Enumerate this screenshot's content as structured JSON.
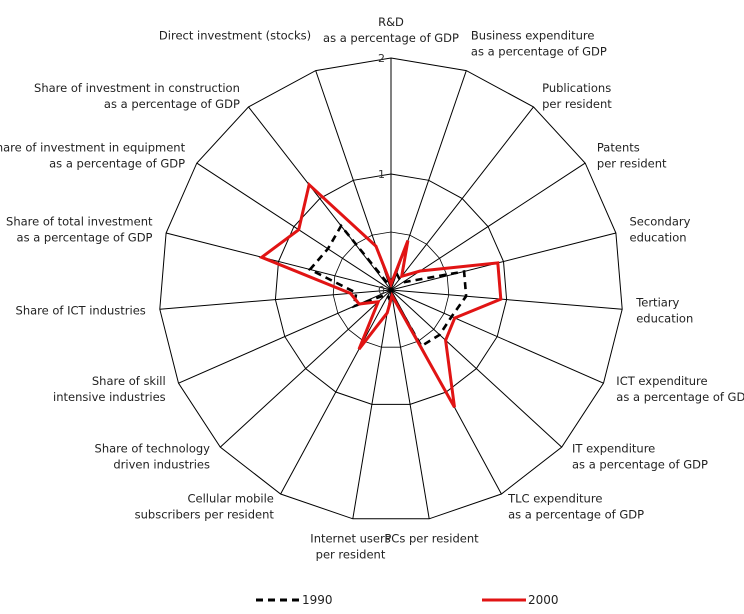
{
  "chart_data": {
    "type": "radar",
    "axes": [
      {
        "line1": "R&D",
        "line2": "as a percentage of GDP"
      },
      {
        "line1": "Business expenditure",
        "line2": "as a percentage of GDP"
      },
      {
        "line1": "Publications",
        "line2": "per resident"
      },
      {
        "line1": "Patents",
        "line2": "per resident"
      },
      {
        "line1": "Secondary",
        "line2": "education"
      },
      {
        "line1": "Tertiary",
        "line2": "education"
      },
      {
        "line1": "ICT expenditure",
        "line2": "as a percentage of GDP"
      },
      {
        "line1": "IT expenditure",
        "line2": "as a percentage of GDP"
      },
      {
        "line1": "TLC expenditure",
        "line2": "as a percentage of GDP"
      },
      {
        "line1": "PCs per resident",
        "line2": ""
      },
      {
        "line1": "Internet users",
        "line2": "per resident"
      },
      {
        "line1": "Cellular mobile",
        "line2": "subscribers per resident"
      },
      {
        "line1": "Share of technology",
        "line2": "driven industries"
      },
      {
        "line1": "Share of skill",
        "line2": "intensive industries"
      },
      {
        "line1": "Share of ICT industries",
        "line2": ""
      },
      {
        "line1": "Share of total investment",
        "line2": "as a percentage of GDP"
      },
      {
        "line1": "Share of investment in equipment",
        "line2": "as a percentage of GDP"
      },
      {
        "line1": "Share of investment in construction",
        "line2": "as a percentage of GDP"
      },
      {
        "line1": "Direct investment (stocks)",
        "line2": ""
      }
    ],
    "rmax": 2,
    "ticks": [
      0,
      1,
      2
    ],
    "series": [
      {
        "name": "1990",
        "color": "#000000",
        "style": "dashed",
        "values": [
          0.05,
          0.15,
          0.12,
          0.12,
          0.65,
          0.65,
          0.57,
          0.57,
          0.55,
          0.04,
          0.08,
          0.06,
          0.06,
          0.35,
          0.3,
          0.72,
          0.65,
          0.7,
          0.04
        ]
      },
      {
        "name": "2000",
        "color": "#e11414",
        "style": "solid",
        "values": [
          0.05,
          0.45,
          0.15,
          0.3,
          0.95,
          0.95,
          0.6,
          0.64,
          1.15,
          0.05,
          0.2,
          0.58,
          0.15,
          0.3,
          0.35,
          1.15,
          0.95,
          1.15,
          0.4
        ]
      }
    ],
    "legend": "bottom",
    "grid": true
  }
}
